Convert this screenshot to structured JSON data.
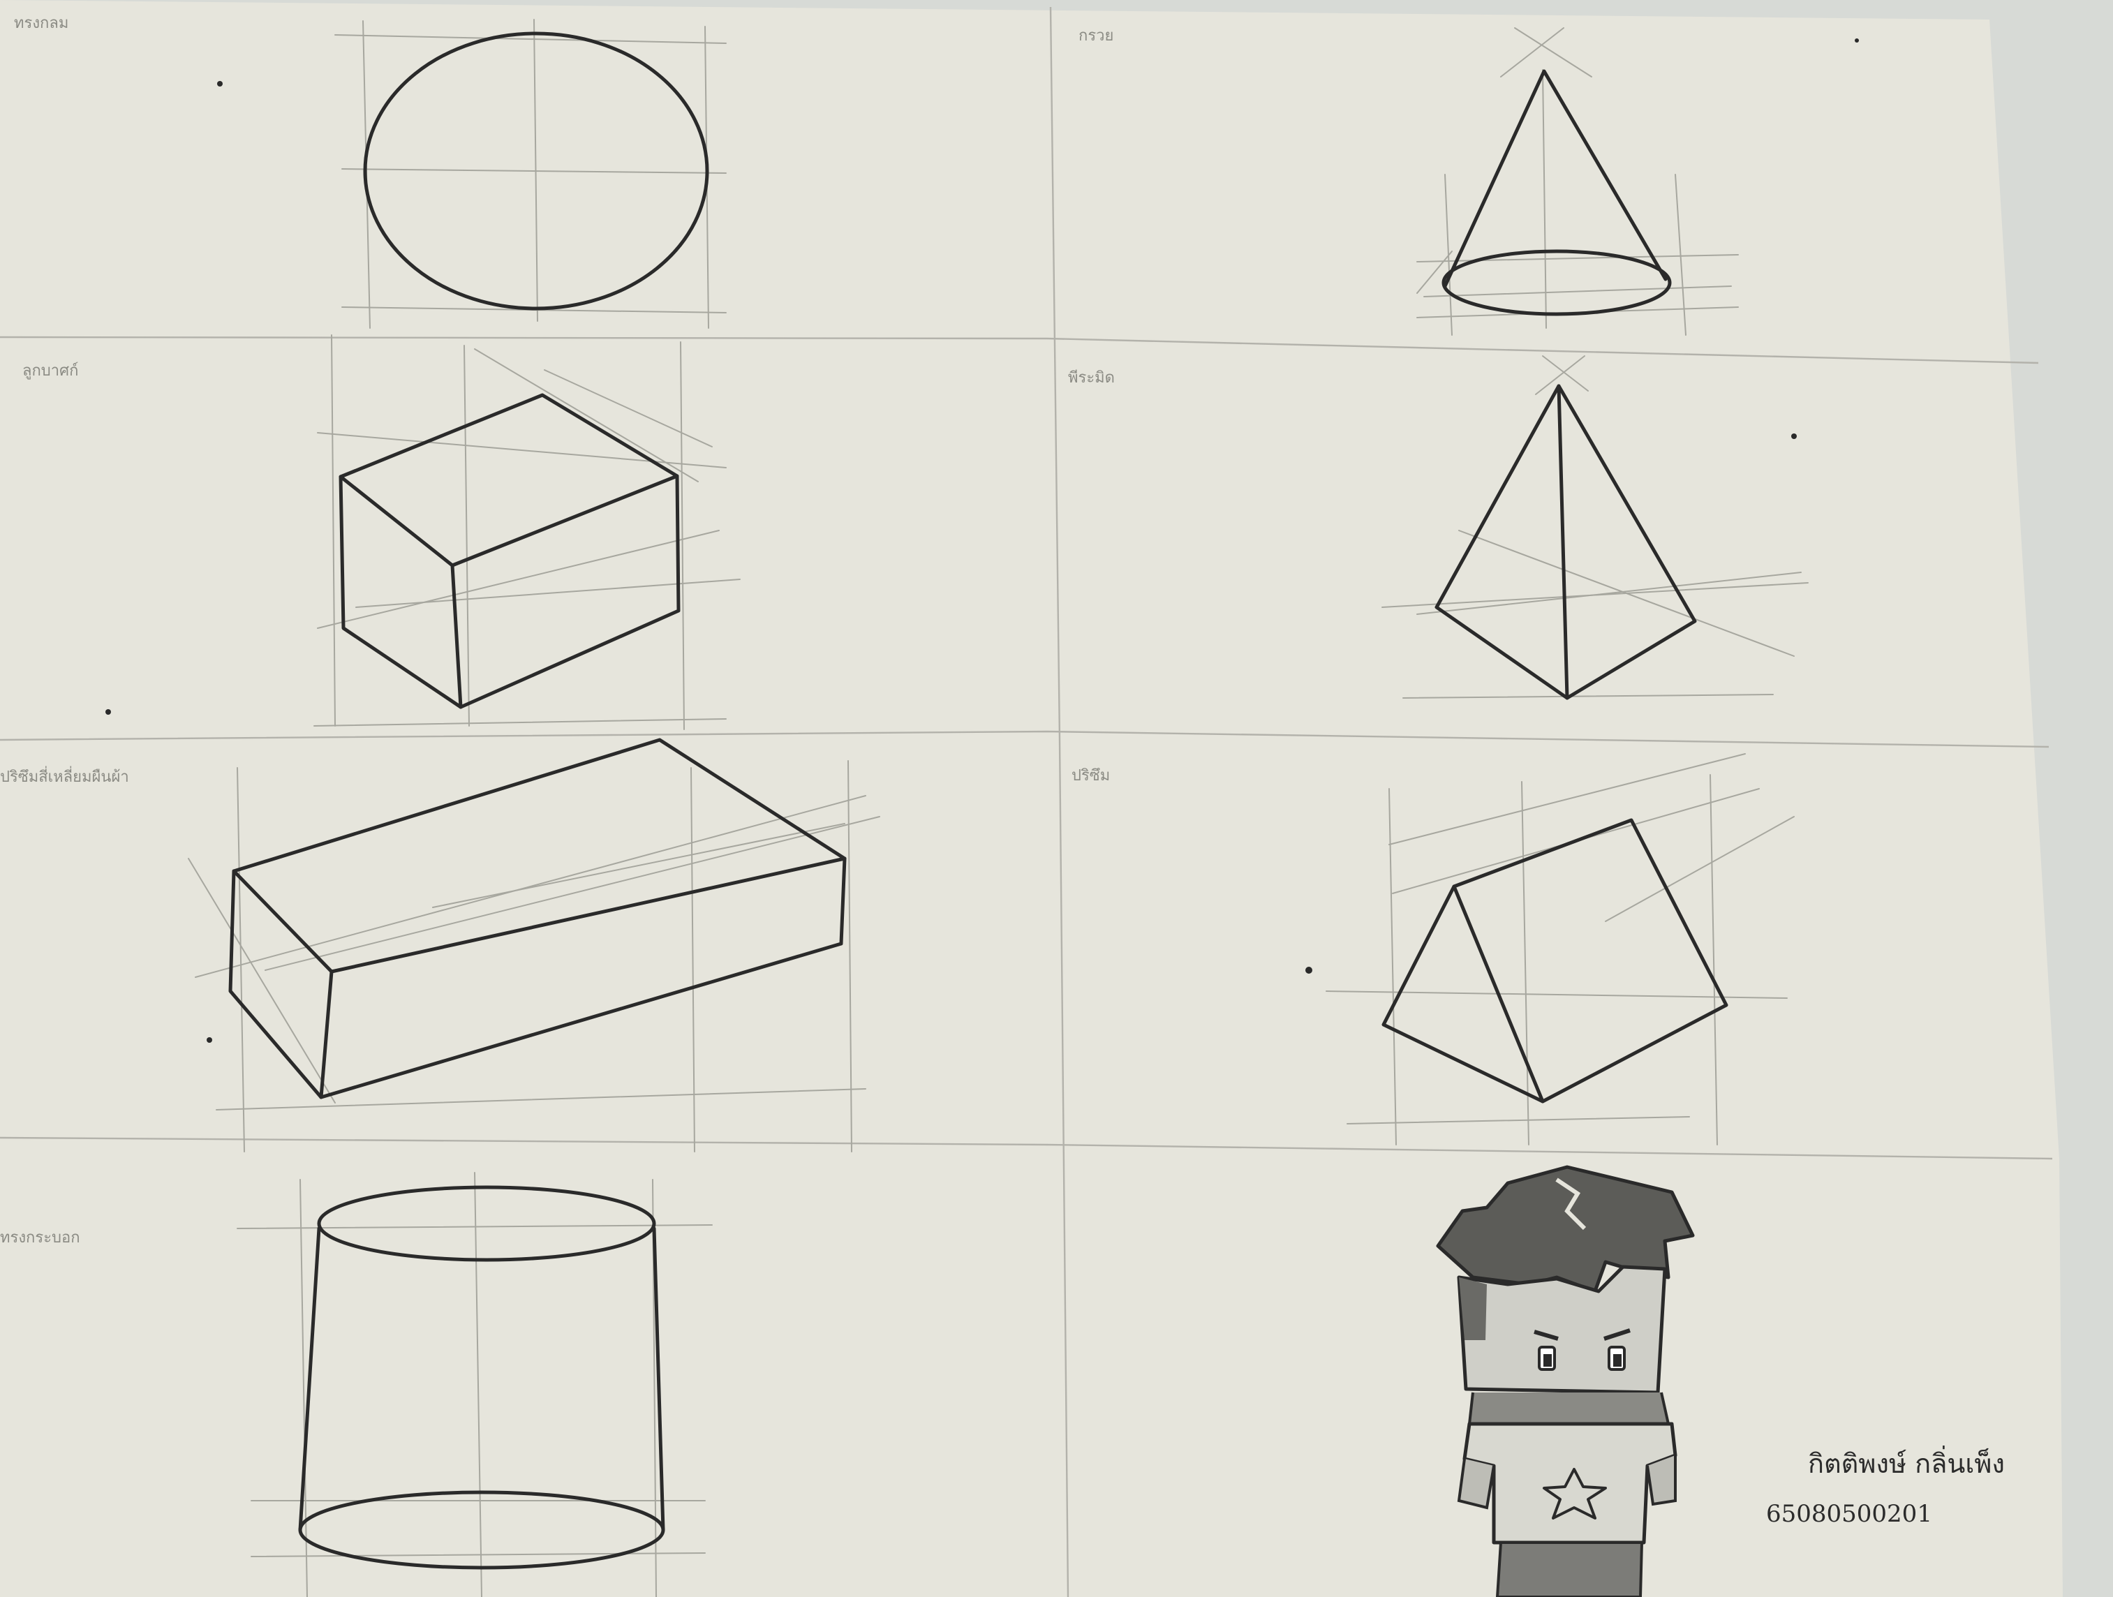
{
  "sheet": {
    "paper_color": "#e6e5dc",
    "background_color": "#d7dad6",
    "pencil_color": "#2a2a2a",
    "labels": {
      "sphere": "ทรงกลม",
      "cone": "กรวย",
      "cube": "ลูกบาศก์",
      "pyramid": "พีระมิด",
      "prism_rect": "ปริซึมสี่เหลี่ยมผืนผ้า",
      "prism_tri": "ปริซึม",
      "cylinder": "ทรงกระบอก"
    },
    "signature": {
      "name": "กิตติพงษ์ กลิ่นเพ็ง",
      "student_id": "65080500201"
    }
  }
}
